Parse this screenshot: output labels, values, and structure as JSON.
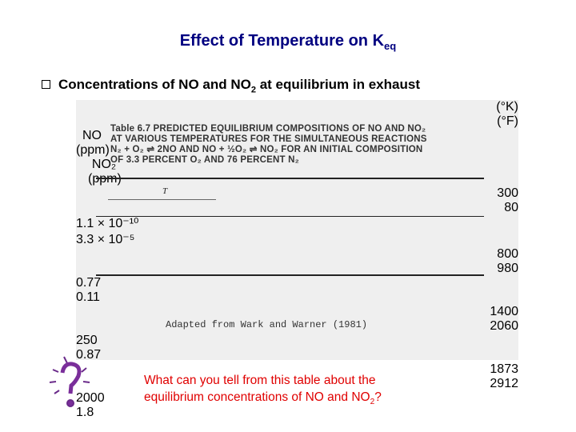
{
  "slide": {
    "title": {
      "text": "Effect of Temperature on K",
      "subscript": "eq"
    },
    "bullet": {
      "before": "Concentrations of NO and NO",
      "subscript": "2",
      "after": " at equilibrium in exhaust"
    },
    "question": {
      "line1": "What can you tell from this table about the",
      "line2_before": "equilibrium concentrations of NO and NO",
      "subscript": "2",
      "line2_after": "?"
    }
  },
  "table": {
    "caption": [
      "Table 6.7  PREDICTED EQUILIBRIUM COMPOSITIONS OF NO AND NO₂",
      "AT VARIOUS TEMPERATURES FOR THE SIMULTANEOUS REACTIONS",
      "N₂ + O₂ ⇌ 2NO AND NO + ½O₂ ⇌ NO₂ FOR AN INITIAL COMPOSITION",
      "OF 3.3 PERCENT O₂ AND 76 PERCENT N₂"
    ],
    "group_header": "T",
    "headers": [
      [
        "(°K)"
      ],
      [
        "(°F)"
      ],
      [
        "NO",
        "(ppm)"
      ],
      [
        "NO₂",
        "(ppm)"
      ]
    ],
    "rows": [
      [
        "300",
        "80",
        "1.1 × 10⁻¹⁰",
        "3.3 × 10⁻⁵"
      ],
      [
        "800",
        "980",
        "0.77",
        "0.11"
      ],
      [
        "1400",
        "2060",
        "250",
        "0.87"
      ],
      [
        "1873",
        "2912",
        "2000",
        "1.8"
      ]
    ],
    "source": "Adapted from Wark and Warner (1981)"
  }
}
